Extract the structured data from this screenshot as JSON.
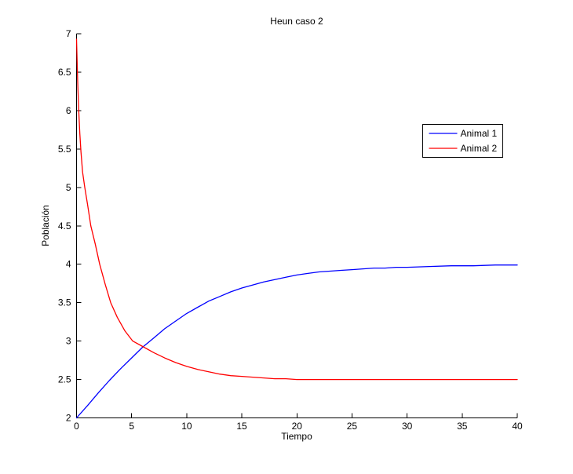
{
  "figure": {
    "background_color": "#ffffff",
    "axis_color": "#000000",
    "text_color": "#000000"
  },
  "chart_data": {
    "type": "line",
    "title": "Heun caso 2",
    "xlabel": "Tiempo",
    "ylabel": "Población",
    "xlim": [
      0,
      40
    ],
    "ylim": [
      2,
      7
    ],
    "x_ticks": [
      0,
      5,
      10,
      15,
      20,
      25,
      30,
      35,
      40
    ],
    "y_ticks": [
      2,
      2.5,
      3,
      3.5,
      4,
      4.5,
      5,
      5.5,
      6,
      6.5,
      7
    ],
    "grid": false,
    "box": false,
    "legend": {
      "position": "upper-right",
      "entries": [
        "Animal 1",
        "Animal 2"
      ]
    },
    "series": [
      {
        "name": "Animal 1",
        "color": "#0000ff",
        "points": [
          [
            0,
            2.0
          ],
          [
            1,
            2.16
          ],
          [
            2,
            2.33
          ],
          [
            3,
            2.49
          ],
          [
            4,
            2.64
          ],
          [
            5,
            2.78
          ],
          [
            6,
            2.92
          ],
          [
            7,
            3.04
          ],
          [
            8,
            3.16
          ],
          [
            9,
            3.26
          ],
          [
            10,
            3.36
          ],
          [
            11,
            3.44
          ],
          [
            12,
            3.52
          ],
          [
            13,
            3.58
          ],
          [
            14,
            3.64
          ],
          [
            15,
            3.69
          ],
          [
            16,
            3.73
          ],
          [
            17,
            3.77
          ],
          [
            18,
            3.8
          ],
          [
            19,
            3.83
          ],
          [
            20,
            3.86
          ],
          [
            21,
            3.88
          ],
          [
            22,
            3.9
          ],
          [
            23,
            3.91
          ],
          [
            24,
            3.92
          ],
          [
            25,
            3.93
          ],
          [
            26,
            3.94
          ],
          [
            27,
            3.95
          ],
          [
            28,
            3.95
          ],
          [
            29,
            3.96
          ],
          [
            30,
            3.96
          ],
          [
            32,
            3.97
          ],
          [
            34,
            3.98
          ],
          [
            36,
            3.98
          ],
          [
            38,
            3.99
          ],
          [
            40,
            3.99
          ]
        ]
      },
      {
        "name": "Animal 2",
        "color": "#ff0000",
        "points": [
          [
            0,
            6.93
          ],
          [
            0.1,
            6.4
          ],
          [
            0.2,
            6.0
          ],
          [
            0.3,
            5.7
          ],
          [
            0.4,
            5.47
          ],
          [
            0.55,
            5.2
          ],
          [
            0.75,
            5.0
          ],
          [
            1.0,
            4.78
          ],
          [
            1.3,
            4.5
          ],
          [
            1.7,
            4.26
          ],
          [
            2.1,
            4.0
          ],
          [
            2.6,
            3.74
          ],
          [
            3.1,
            3.5
          ],
          [
            3.7,
            3.31
          ],
          [
            4.4,
            3.13
          ],
          [
            5.1,
            3.0
          ],
          [
            6,
            2.93
          ],
          [
            7,
            2.85
          ],
          [
            8,
            2.78
          ],
          [
            9,
            2.72
          ],
          [
            10,
            2.67
          ],
          [
            11,
            2.63
          ],
          [
            12,
            2.6
          ],
          [
            13,
            2.57
          ],
          [
            14,
            2.55
          ],
          [
            15,
            2.54
          ],
          [
            16,
            2.53
          ],
          [
            17,
            2.52
          ],
          [
            18,
            2.51
          ],
          [
            19,
            2.51
          ],
          [
            20,
            2.5
          ],
          [
            22,
            2.5
          ],
          [
            24,
            2.5
          ],
          [
            26,
            2.5
          ],
          [
            28,
            2.5
          ],
          [
            30,
            2.5
          ],
          [
            32,
            2.5
          ],
          [
            34,
            2.5
          ],
          [
            36,
            2.5
          ],
          [
            38,
            2.5
          ],
          [
            40,
            2.5
          ]
        ]
      }
    ]
  }
}
